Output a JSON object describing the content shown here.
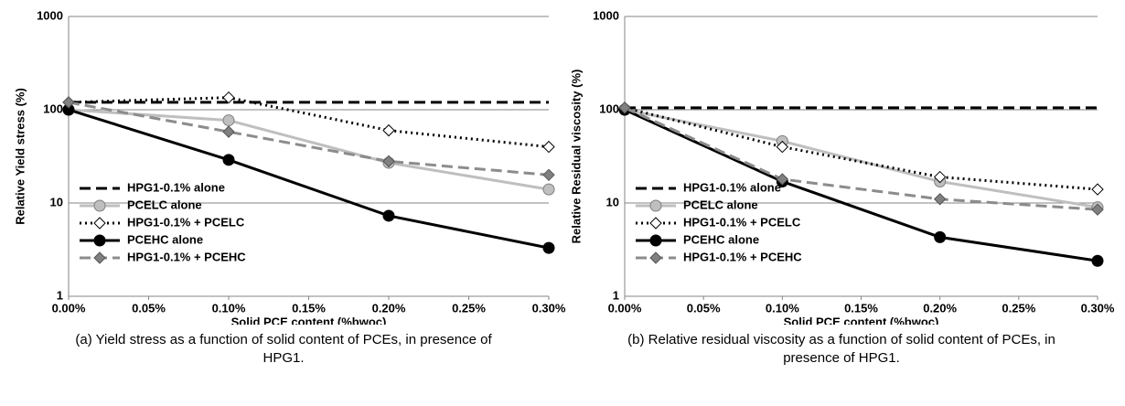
{
  "chart_data": [
    {
      "type": "line",
      "log_y": true,
      "grid": true,
      "legend": "lower left",
      "ylabel": "Relative Yield stress (%)",
      "xlabel": "Solid PCE content (%bwoc)",
      "caption": "(a) Yield stress as a function of solid content of PCEs, in presence of HPG1.",
      "x": [
        0,
        0.1,
        0.2,
        0.3
      ],
      "xlim": [
        0,
        0.3
      ],
      "xticks": [
        {
          "value": 0,
          "label": "0.00%"
        },
        {
          "value": 0.05,
          "label": "0.05%"
        },
        {
          "value": 0.1,
          "label": "0.10%"
        },
        {
          "value": 0.15,
          "label": "0.15%"
        },
        {
          "value": 0.2,
          "label": "0.20%"
        },
        {
          "value": 0.25,
          "label": "0.25%"
        },
        {
          "value": 0.3,
          "label": "0.30%"
        }
      ],
      "ylim": [
        1,
        1000
      ],
      "yticks": [
        1,
        10,
        100,
        1000
      ],
      "series": [
        {
          "name": "HPG1-0.1% alone",
          "color": "#000000",
          "dash": "dashed",
          "marker": null,
          "values": [
            120,
            120,
            120,
            120
          ]
        },
        {
          "name": "PCELC alone",
          "color": "#bfbfbf",
          "dash": "solid",
          "marker": "circle",
          "marker_color": "#bfbfbf",
          "values": [
            100,
            77,
            27,
            14
          ]
        },
        {
          "name": "HPG1-0.1% + PCELC",
          "color": "#000000",
          "dash": "dotted",
          "marker": "diamond",
          "marker_color": "#ffffff",
          "values": [
            120,
            135,
            60,
            40
          ]
        },
        {
          "name": "PCEHC alone",
          "color": "#000000",
          "dash": "solid",
          "marker": "circle",
          "marker_color": "#000000",
          "values": [
            100,
            29,
            7.3,
            3.3
          ]
        },
        {
          "name": "HPG1-0.1% + PCEHC",
          "color": "#8c8c8c",
          "dash": "dashed",
          "marker": "diamond",
          "marker_color": "#808080",
          "values": [
            120,
            58,
            28,
            20
          ]
        }
      ]
    },
    {
      "type": "line",
      "log_y": true,
      "grid": true,
      "legend": "lower left",
      "ylabel": "Relative Residual viscosity (%)",
      "xlabel": "Solid PCE content (%bwoc)",
      "caption": "(b) Relative residual viscosity as a function of solid content of PCEs, in presence of HPG1.",
      "x": [
        0,
        0.1,
        0.2,
        0.3
      ],
      "xlim": [
        0,
        0.3
      ],
      "xticks": [
        {
          "value": 0,
          "label": "0.00%"
        },
        {
          "value": 0.05,
          "label": "0.05%"
        },
        {
          "value": 0.1,
          "label": "0.10%"
        },
        {
          "value": 0.15,
          "label": "0.15%"
        },
        {
          "value": 0.2,
          "label": "0.20%"
        },
        {
          "value": 0.25,
          "label": "0.25%"
        },
        {
          "value": 0.3,
          "label": "0.30%"
        }
      ],
      "ylim": [
        1,
        1000
      ],
      "yticks": [
        1,
        10,
        100,
        1000
      ],
      "series": [
        {
          "name": "HPG1-0.1% alone",
          "color": "#000000",
          "dash": "dashed",
          "marker": null,
          "values": [
            105,
            105,
            105,
            105
          ]
        },
        {
          "name": "PCELC alone",
          "color": "#bfbfbf",
          "dash": "solid",
          "marker": "circle",
          "marker_color": "#bfbfbf",
          "values": [
            100,
            46,
            17,
            9
          ]
        },
        {
          "name": "HPG1-0.1% + PCELC",
          "color": "#000000",
          "dash": "dotted",
          "marker": "diamond",
          "marker_color": "#ffffff",
          "values": [
            105,
            40,
            19,
            14
          ]
        },
        {
          "name": "PCEHC alone",
          "color": "#000000",
          "dash": "solid",
          "marker": "circle",
          "marker_color": "#000000",
          "values": [
            100,
            17,
            4.3,
            2.4
          ]
        },
        {
          "name": "HPG1-0.1% + PCEHC",
          "color": "#8c8c8c",
          "dash": "dashed",
          "marker": "diamond",
          "marker_color": "#808080",
          "values": [
            105,
            18,
            11,
            8.5
          ]
        }
      ]
    }
  ]
}
